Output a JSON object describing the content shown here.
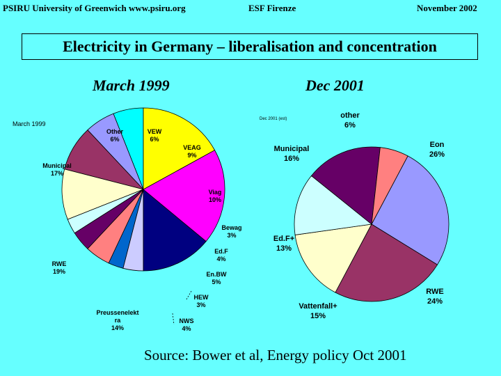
{
  "header": {
    "left": "PSIRU University of Greenwich   www.psiru.org",
    "center": "ESF Firenze",
    "right": "November  2002"
  },
  "title": "Electricity in Germany – liberalisation and concentration",
  "subtitles": {
    "left": "March 1999",
    "right": "Dec 2001"
  },
  "source": "Source: Bower et al, Energy policy  Oct 2001",
  "colors": {
    "background": "#66ffff"
  },
  "chart_data": [
    {
      "type": "pie",
      "title": "March 1999",
      "series": [
        {
          "label": "Other",
          "value": 6,
          "text": "6%",
          "color": "#00ffff"
        },
        {
          "label": "VEW",
          "value": 6,
          "text": "6%",
          "color": "#9999ff"
        },
        {
          "label": "VEAG",
          "value": 9,
          "text": "9%",
          "color": "#993366"
        },
        {
          "label": "Viag",
          "value": 10,
          "text": "10%",
          "color": "#ffffcc"
        },
        {
          "label": "Bewag",
          "value": 3,
          "text": "3%",
          "color": "#ccffff"
        },
        {
          "label": "Ed.F",
          "value": 4,
          "text": "4%",
          "color": "#660066"
        },
        {
          "label": "En.BW",
          "value": 5,
          "text": "5%",
          "color": "#ff8080"
        },
        {
          "label": "HEW",
          "value": 3,
          "text": "3%",
          "color": "#0066cc"
        },
        {
          "label": "NWS",
          "value": 4,
          "text": "4%",
          "color": "#ccccff"
        },
        {
          "label": "Preussenelekt ra",
          "value": 14,
          "text": "14%",
          "color": "#000080"
        },
        {
          "label": "RWE",
          "value": 19,
          "text": "19%",
          "color": "#ff00ff"
        },
        {
          "label": "Municipal",
          "value": 17,
          "text": "17%",
          "color": "#ffff00"
        }
      ]
    },
    {
      "type": "pie",
      "title": "Dec 2001 (est)",
      "series": [
        {
          "label": "Eon",
          "value": 26,
          "text": "26%",
          "color": "#9999ff"
        },
        {
          "label": "RWE",
          "value": 24,
          "text": "24%",
          "color": "#993366"
        },
        {
          "label": "Vattenfall+",
          "value": 15,
          "text": "15%",
          "color": "#ffffcc"
        },
        {
          "label": "Ed.F+",
          "value": 13,
          "text": "13%",
          "color": "#ccffff"
        },
        {
          "label": "Municipal",
          "value": 16,
          "text": "16%",
          "color": "#660066"
        },
        {
          "label": "other",
          "value": 6,
          "text": "6%",
          "color": "#ff8080"
        }
      ]
    }
  ]
}
